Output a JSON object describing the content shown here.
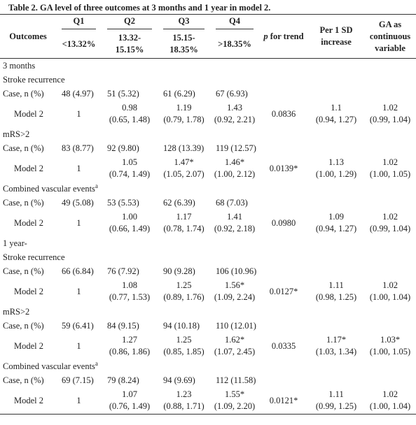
{
  "title": "Table 2. GA level of three outcomes at 3 months and 1 year in model 2.",
  "header": {
    "outcomes": "Outcomes",
    "quartiles": [
      {
        "name": "Q1",
        "range": "<13.32%"
      },
      {
        "name": "Q2",
        "range": "13.32-15.15%"
      },
      {
        "name": "Q3",
        "range": "15.15-18.35%"
      },
      {
        "name": "Q4",
        "range": ">18.35%"
      }
    ],
    "p_italic": "p",
    "p_rest": "for trend",
    "per_sd": "Per 1 SD increase",
    "continuous": "GA as continuous variable"
  },
  "sections": [
    {
      "label": "3 months",
      "outcomes": [
        {
          "name": "Stroke recurrence",
          "case": {
            "label": "Case, n (%)",
            "values": [
              "48 (4.97)",
              "51 (5.32)",
              "61 (6.29)",
              "67 (6.93)"
            ]
          },
          "model": {
            "label": "Model 2",
            "q1": "1",
            "q": [
              {
                "est": "0.98",
                "ci": "(0.65, 1.48)"
              },
              {
                "est": "1.19",
                "ci": "(0.79, 1.78)"
              },
              {
                "est": "1.43",
                "ci": "(0.92, 2.21)"
              }
            ],
            "p": "0.0836",
            "per_sd": {
              "est": "1.1",
              "ci": "(0.94, 1.27)"
            },
            "continuous": {
              "est": "1.02",
              "ci": "(0.99, 1.04)"
            }
          }
        },
        {
          "name": "mRS>2",
          "case": {
            "label": "Case, n (%)",
            "values": [
              "83 (8.77)",
              "92 (9.80)",
              "128 (13.39)",
              "119 (12.57)"
            ]
          },
          "model": {
            "label": "Model 2",
            "q1": "1",
            "q": [
              {
                "est": "1.05",
                "ci": "(0.74, 1.49)"
              },
              {
                "est": "1.47*",
                "ci": "(1.05, 2.07)"
              },
              {
                "est": "1.46*",
                "ci": "(1.00, 2.12)"
              }
            ],
            "p": "0.0139*",
            "per_sd": {
              "est": "1.13",
              "ci": "(1.00, 1.29)"
            },
            "continuous": {
              "est": "1.02",
              "ci": "(1.00, 1.05)"
            }
          }
        },
        {
          "name": "Combined vascular events",
          "sup": "a",
          "case": {
            "label": "Case, n (%)",
            "values": [
              "49 (5.08)",
              "53 (5.53)",
              "62 (6.39)",
              "68 (7.03)"
            ]
          },
          "model": {
            "label": "Model 2",
            "q1": "1",
            "q": [
              {
                "est": "1.00",
                "ci": "(0.66, 1.49)"
              },
              {
                "est": "1.17",
                "ci": "(0.78, 1.74)"
              },
              {
                "est": "1.41",
                "ci": "(0.92, 2.18)"
              }
            ],
            "p": "0.0980",
            "per_sd": {
              "est": "1.09",
              "ci": "(0.94, 1.27)"
            },
            "continuous": {
              "est": "1.02",
              "ci": "(0.99, 1.04)"
            }
          }
        }
      ]
    },
    {
      "label": "1 year-",
      "outcomes": [
        {
          "name": "Stroke recurrence",
          "case": {
            "label": "Case, n (%)",
            "values": [
              "66 (6.84)",
              "76 (7.92)",
              "90 (9.28)",
              "106 (10.96)"
            ]
          },
          "model": {
            "label": "Model 2",
            "q1": "1",
            "q": [
              {
                "est": "1.08",
                "ci": "(0.77, 1.53)"
              },
              {
                "est": "1.25",
                "ci": "(0.89, 1.76)"
              },
              {
                "est": "1.56*",
                "ci": "(1.09, 2.24)"
              }
            ],
            "p": "0.0127*",
            "per_sd": {
              "est": "1.11",
              "ci": "(0.98, 1.25)"
            },
            "continuous": {
              "est": "1.02",
              "ci": "(1.00, 1.04)"
            }
          }
        },
        {
          "name": "mRS>2",
          "case": {
            "label": "Case, n (%)",
            "values": [
              "59 (6.41)",
              "84 (9.15)",
              "94 (10.18)",
              "110 (12.01)"
            ]
          },
          "model": {
            "label": "Model 2",
            "q1": "1",
            "q": [
              {
                "est": "1.27",
                "ci": "(0.86, 1.86)"
              },
              {
                "est": "1.25",
                "ci": "(0.85, 1.85)"
              },
              {
                "est": "1.62*",
                "ci": "(1.07, 2.45)"
              }
            ],
            "p": "0.0335",
            "per_sd": {
              "est": "1.17*",
              "ci": "(1.03, 1.34)"
            },
            "continuous": {
              "est": "1.03*",
              "ci": "(1.00, 1.05)"
            }
          }
        },
        {
          "name": "Combined vascular events",
          "sup": "a",
          "case": {
            "label": "Case, n (%)",
            "values": [
              "69 (7.15)",
              "79 (8.24)",
              "94 (9.69)",
              "112 (11.58)"
            ]
          },
          "model": {
            "label": "Model 2",
            "q1": "1",
            "q": [
              {
                "est": "1.07",
                "ci": "(0.76, 1.49)"
              },
              {
                "est": "1.23",
                "ci": "(0.88, 1.71)"
              },
              {
                "est": "1.55*",
                "ci": "(1.09, 2.20)"
              }
            ],
            "p": "0.0121*",
            "per_sd": {
              "est": "1.11",
              "ci": "(0.99, 1.25)"
            },
            "continuous": {
              "est": "1.02",
              "ci": "(1.00, 1.04)"
            }
          }
        }
      ]
    }
  ]
}
